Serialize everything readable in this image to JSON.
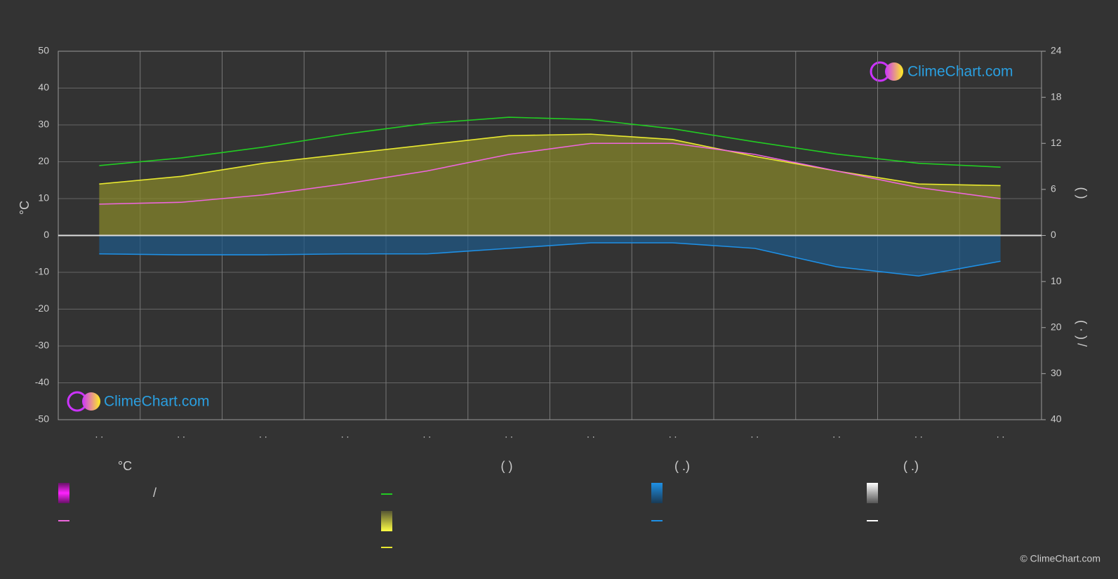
{
  "chart_data": {
    "type": "line",
    "y_label": "°C",
    "y2_label": "(   )",
    "y3_label": "( · )   /",
    "categories": [
      ". .",
      ". .",
      ". .",
      ". .",
      ". .",
      ". .",
      ". .",
      ". .",
      ". .",
      ". .",
      ". .",
      ". ."
    ],
    "ylim": [
      -50,
      50
    ],
    "yticks": [
      -50,
      -40,
      -30,
      -20,
      -10,
      0,
      10,
      20,
      30,
      40,
      50
    ],
    "y2lim": [
      0,
      24
    ],
    "y2ticks": [
      0,
      6,
      12,
      18,
      24
    ],
    "y3lim": [
      0,
      40
    ],
    "y3ticks": [
      10,
      20,
      30,
      40
    ],
    "grid": true,
    "series": [
      {
        "color": "#22cc22",
        "axis": "y2",
        "values": [
          9.1,
          10.1,
          11.5,
          13.2,
          14.6,
          15.4,
          15.1,
          13.9,
          12.2,
          10.6,
          9.4,
          8.9
        ]
      },
      {
        "color": "#e8e830",
        "axis": "y2",
        "area": "#8a8a2a",
        "values": [
          6.7,
          7.7,
          9.4,
          10.6,
          11.8,
          13.0,
          13.2,
          12.5,
          10.3,
          8.4,
          6.7,
          6.5
        ]
      },
      {
        "color": "#ee66dd",
        "axis": "y",
        "values": [
          8.5,
          9,
          11,
          14,
          17.5,
          22,
          25,
          25,
          22,
          17.5,
          13,
          10
        ]
      },
      {
        "color": "#1e90e6",
        "axis": "y3",
        "area": "#1e5a8a",
        "values": [
          4,
          4.2,
          4.2,
          4,
          4,
          2.8,
          1.6,
          1.6,
          2.8,
          6.8,
          8.8,
          5.6
        ]
      }
    ],
    "legend": {
      "headings": [
        "°C",
        "(        )",
        "(   .)",
        "(   .)"
      ],
      "note": "/"
    },
    "logo": "ClimeChart.com",
    "copyright": "© ClimeChart.com"
  }
}
